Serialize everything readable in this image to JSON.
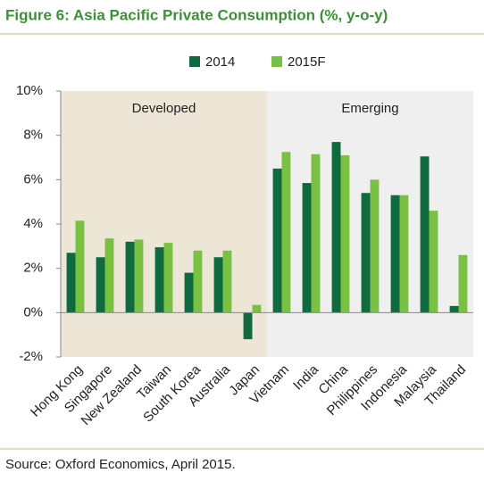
{
  "chart_data": {
    "type": "bar",
    "title": "Figure 6: Asia Pacific Private Consumption (%, y-o-y)",
    "source": "Source: Oxford Economics, April 2015.",
    "categories": [
      "Hong Kong",
      "Singapore",
      "New Zealand",
      "Taiwan",
      "South Korea",
      "Australia",
      "Japan",
      "Vietnam",
      "India",
      "China",
      "Philippines",
      "Indonesia",
      "Malaysia",
      "Thailand"
    ],
    "series": [
      {
        "name": "2014",
        "color": "#0f6b3f",
        "values": [
          2.7,
          2.5,
          3.2,
          2.95,
          1.8,
          2.5,
          -1.2,
          6.5,
          5.85,
          7.7,
          5.4,
          5.3,
          7.05,
          0.3
        ]
      },
      {
        "name": "2015F",
        "color": "#7ac143",
        "values": [
          4.15,
          3.35,
          3.3,
          3.15,
          2.8,
          2.8,
          0.35,
          7.25,
          7.15,
          7.1,
          6.0,
          5.3,
          4.6,
          2.6
        ]
      }
    ],
    "regions": [
      {
        "label": "Developed",
        "color": "#ede6d7"
      },
      {
        "label": "Emerging",
        "color": "#efefef"
      }
    ],
    "ylim": [
      -2,
      10
    ],
    "yticks": [
      {
        "value": -2,
        "label": "-2%"
      },
      {
        "value": 0,
        "label": "0%"
      },
      {
        "value": 2,
        "label": "2%"
      },
      {
        "value": 4,
        "label": "4%"
      },
      {
        "value": 6,
        "label": "6%"
      },
      {
        "value": 8,
        "label": "8%"
      },
      {
        "value": 10,
        "label": "10%"
      }
    ],
    "legend": "top"
  }
}
